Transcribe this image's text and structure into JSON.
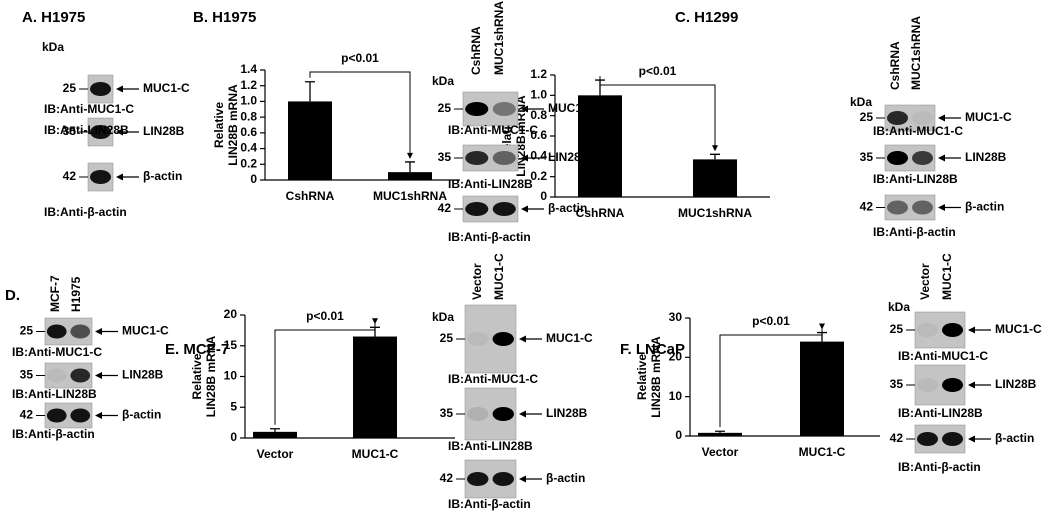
{
  "chart_data": [
    {
      "type": "bar",
      "title": "B.  H1975",
      "ylabel": [
        "Relative",
        "LIN28B  mRNA"
      ],
      "annotation": "p<0.01",
      "categories": [
        "CshRNA",
        "MUC1shRNA"
      ],
      "values": [
        1.0,
        0.1
      ],
      "errors": [
        0.25,
        0.13
      ],
      "color": "#000000",
      "ylim": [
        0,
        1.4
      ],
      "yticks": [
        0,
        0.2,
        0.4,
        0.6,
        0.8,
        {
          "value": 1,
          "label": "1.0"
        },
        1.2,
        1.4
      ]
    },
    {
      "type": "bar",
      "title": "C.  H1299",
      "ylabel": [
        "Relative",
        "LIN28B  mRNA"
      ],
      "annotation": "p<0.01",
      "categories": [
        "CshRNA",
        "MUC1shRNA"
      ],
      "values": [
        1.0,
        0.37
      ],
      "errors": [
        0.15,
        0.05
      ],
      "color": "#000000",
      "ylim": [
        0,
        1.2
      ],
      "yticks": [
        0,
        0.2,
        0.4,
        0.6,
        0.8,
        {
          "value": 1,
          "label": "1.0"
        },
        1.2
      ]
    },
    {
      "type": "bar",
      "title": "E.  MCF-7",
      "ylabel": [
        "Relative",
        "LIN28B  mRNA"
      ],
      "annotation": "p<0.01",
      "categories": [
        "Vector",
        "MUC1-C"
      ],
      "values": [
        1,
        16.5
      ],
      "errors": [
        0.5,
        1.5
      ],
      "color": "#000000",
      "ylim": [
        0,
        20
      ],
      "yticks": [
        0,
        5,
        10,
        15,
        20
      ]
    },
    {
      "type": "bar",
      "title": "F.  LNCaP",
      "ylabel": [
        "Relative",
        "LIN28B  mRNA"
      ],
      "annotation": "p<0.01",
      "categories": [
        "Vector",
        "MUC1-C"
      ],
      "values": [
        0.8,
        24
      ],
      "errors": [
        0.4,
        2.3
      ],
      "color": "#000000",
      "ylim": [
        0,
        30
      ],
      "yticks": [
        0,
        10,
        20,
        30
      ]
    }
  ],
  "blots": [
    {
      "title": "A.  H1975",
      "kda": "kDa",
      "lanes": [],
      "rows": [
        {
          "size": 25,
          "protein": "MUC1-C",
          "ib": "IB:Anti-MUC1-C"
        },
        {
          "size": 35,
          "protein": "LIN28B",
          "ib": "IB:Anti-LIN28B"
        },
        {
          "size": 42,
          "protein": "β-actin",
          "ib": "IB:Anti-β-actin"
        }
      ]
    },
    {
      "kda": "kDa",
      "lanes": [
        "CshRNA",
        "MUC1shRNA"
      ],
      "rows": [
        {
          "size": 25,
          "protein": "MUC1-C",
          "ib": "IB:Anti-MUC1-C"
        },
        {
          "size": 35,
          "protein": "LIN28B",
          "ib": "IB:Anti-LIN28B"
        },
        {
          "size": 42,
          "protein": "β-actin",
          "ib": "IB:Anti-β-actin"
        }
      ]
    },
    {
      "kda": "kDa",
      "lanes": [
        "CshRNA",
        "MUC1shRNA"
      ],
      "rows": [
        {
          "size": 25,
          "protein": "MUC1-C",
          "ib": "IB:Anti-MUC1-C"
        },
        {
          "size": 35,
          "protein": "LIN28B",
          "ib": "IB:Anti-LIN28B"
        },
        {
          "size": 42,
          "protein": "β-actin",
          "ib": "IB:Anti-β-actin"
        }
      ]
    },
    {
      "title": "D.",
      "lanes": [
        "MCF-7",
        "H1975"
      ],
      "rows": [
        {
          "size": 25,
          "protein": "MUC1-C",
          "ib": "IB:Anti-MUC1-C"
        },
        {
          "size": 35,
          "protein": "LIN28B",
          "ib": "IB:Anti-LIN28B"
        },
        {
          "size": 42,
          "protein": "β-actin",
          "ib": "IB:Anti-β-actin"
        }
      ]
    },
    {
      "kda": "kDa",
      "lanes": [
        "Vector",
        "MUC1-C"
      ],
      "rows": [
        {
          "size": 25,
          "protein": "MUC1-C",
          "ib": "IB:Anti-MUC1-C"
        },
        {
          "size": 35,
          "protein": "LIN28B",
          "ib": "IB:Anti-LIN28B"
        },
        {
          "size": 42,
          "protein": "β-actin",
          "ib": "IB:Anti-β-actin"
        }
      ]
    },
    {
      "kda": "kDa",
      "lanes": [
        "Vector",
        "MUC1-C"
      ],
      "rows": [
        {
          "size": 25,
          "protein": "MUC1-C",
          "ib": "IB:Anti-MUC1-C"
        },
        {
          "size": 35,
          "protein": "LIN28B",
          "ib": "IB:Anti-LIN28B"
        },
        {
          "size": 42,
          "protein": "β-actin",
          "ib": "IB:Anti-β-actin"
        }
      ]
    }
  ]
}
